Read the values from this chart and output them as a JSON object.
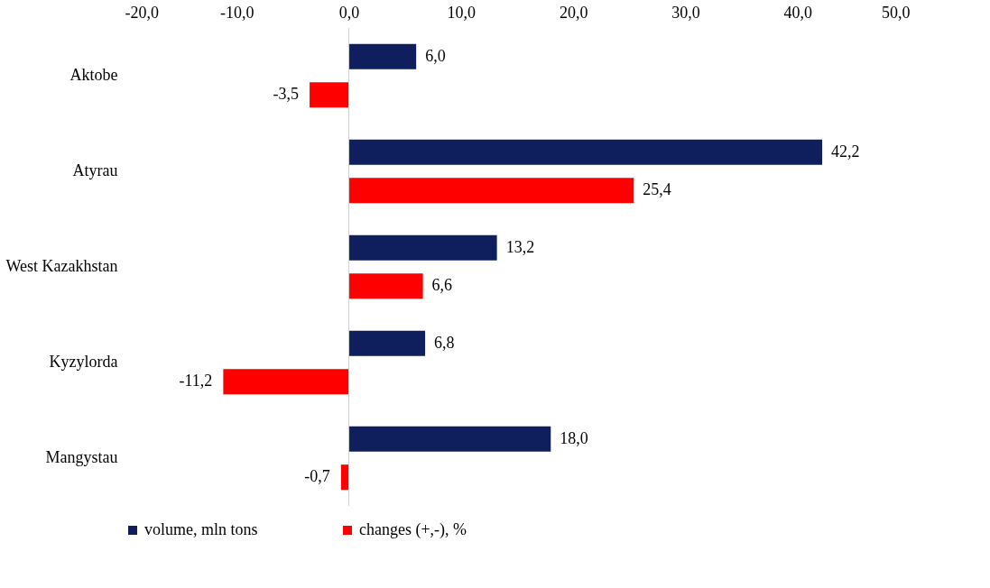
{
  "chart_data": {
    "type": "bar",
    "orientation": "horizontal",
    "categories": [
      "Aktobe",
      "Atyrau",
      "West Kazakhstan",
      "Kyzylorda",
      "Mangystau"
    ],
    "series": [
      {
        "name": "volume, mln tons",
        "color": "#0f1f5e",
        "values": [
          6.0,
          42.2,
          13.2,
          6.8,
          18.0
        ],
        "value_labels": [
          "6,0",
          "42,2",
          "13,2",
          "6,8",
          "18,0"
        ]
      },
      {
        "name": "changes (+,-), %",
        "color": "#ff0000",
        "values": [
          -3.5,
          25.4,
          6.6,
          -11.2,
          -0.7
        ],
        "value_labels": [
          "-3,5",
          "25,4",
          "6,6",
          "-11,2",
          "-0,7"
        ]
      }
    ],
    "xlim": [
      -20,
      50
    ],
    "xticks": [
      {
        "value": -20,
        "label": "-20,0"
      },
      {
        "value": -10,
        "label": "-10,0"
      },
      {
        "value": 0,
        "label": "0,0"
      },
      {
        "value": 10,
        "label": "10,0"
      },
      {
        "value": 20,
        "label": "20,0"
      },
      {
        "value": 30,
        "label": "30,0"
      },
      {
        "value": 40,
        "label": "40,0"
      },
      {
        "value": 50,
        "label": "50,0"
      }
    ],
    "ref_lines": [
      {
        "axis": "x",
        "value": 0,
        "color": "#d0d0d0"
      }
    ],
    "grid": false,
    "legend": "bottom"
  }
}
